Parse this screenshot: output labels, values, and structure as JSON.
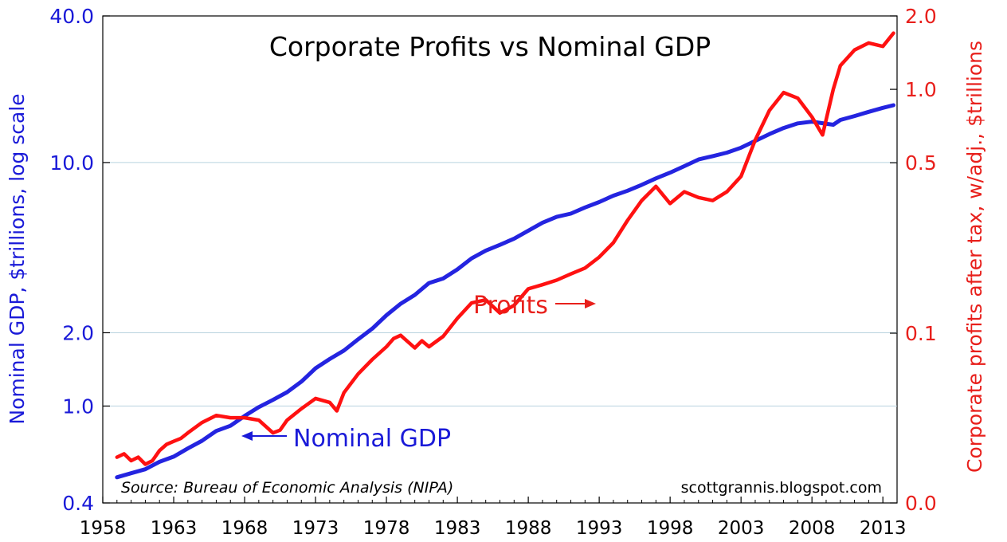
{
  "chart_data": {
    "type": "line",
    "title": "Corporate Profits vs Nominal GDP",
    "source": "Source: Bureau of Economic Analysis (NIPA)",
    "credit": "scottgrannis.blogspot.com",
    "x_ticks": [
      "1958",
      "1963",
      "1968",
      "1973",
      "1978",
      "1983",
      "1988",
      "1993",
      "1998",
      "2003",
      "2008",
      "2013"
    ],
    "xlim": [
      1958,
      2014
    ],
    "left_axis": {
      "label": "Nominal GDP, $trillions, log scale",
      "scale": "log",
      "range": [
        0.4,
        40
      ],
      "ticks": [
        "40.0",
        "10.0",
        "2.0",
        "1.0",
        "0.4"
      ],
      "color": "#1a1ad8"
    },
    "right_axis": {
      "label": "Corporate profits after tax, w/adj., $trillions",
      "scale": "log",
      "ticks": [
        "2.0",
        "1.0",
        "0.5",
        "0.1",
        "0.0"
      ],
      "color": "#e8201c"
    },
    "annotations": {
      "gdp": "Nominal GDP",
      "profits": "Profits"
    },
    "grid": "horizontal",
    "series": [
      {
        "name": "Nominal GDP",
        "axis": "left",
        "color": "#2424e0",
        "x": [
          1959,
          1960,
          1961,
          1962,
          1963,
          1964,
          1965,
          1966,
          1967,
          1968,
          1969,
          1970,
          1971,
          1972,
          1973,
          1974,
          1975,
          1976,
          1977,
          1978,
          1979,
          1980,
          1981,
          1982,
          1983,
          1984,
          1985,
          1986,
          1987,
          1988,
          1989,
          1990,
          1991,
          1992,
          1993,
          1994,
          1995,
          1996,
          1997,
          1998,
          1999,
          2000,
          2001,
          2002,
          2003,
          2004,
          2005,
          2006,
          2007,
          2008,
          2008.75,
          2009.5,
          2010,
          2011,
          2012,
          2013,
          2013.75
        ],
        "values": [
          0.51,
          0.53,
          0.55,
          0.59,
          0.62,
          0.67,
          0.72,
          0.79,
          0.83,
          0.91,
          0.99,
          1.06,
          1.14,
          1.26,
          1.43,
          1.56,
          1.69,
          1.88,
          2.08,
          2.36,
          2.63,
          2.86,
          3.2,
          3.34,
          3.64,
          4.04,
          4.35,
          4.59,
          4.87,
          5.25,
          5.66,
          5.98,
          6.17,
          6.54,
          6.88,
          7.31,
          7.66,
          8.1,
          8.61,
          9.09,
          9.66,
          10.29,
          10.62,
          10.98,
          11.51,
          12.27,
          13.09,
          13.86,
          14.48,
          14.72,
          14.5,
          14.3,
          14.96,
          15.52,
          16.16,
          16.77,
          17.2
        ]
      },
      {
        "name": "Profits",
        "axis": "right",
        "color": "#ff1111",
        "x": [
          1959,
          1959.5,
          1960,
          1960.5,
          1961,
          1961.5,
          1962,
          1962.5,
          1963,
          1963.5,
          1964,
          1965,
          1966,
          1967,
          1968,
          1969,
          1970,
          1970.5,
          1971,
          1972,
          1973,
          1974,
          1974.5,
          1975,
          1976,
          1977,
          1978,
          1978.5,
          1979,
          1980,
          1980.5,
          1981,
          1982,
          1983,
          1984,
          1985,
          1986,
          1987,
          1988,
          1989,
          1990,
          1991,
          1992,
          1993,
          1994,
          1995,
          1996,
          1997,
          1998,
          1999,
          2000,
          2001,
          2002,
          2003,
          2004,
          2005,
          2006,
          2007,
          2008,
          2008.75,
          2009.5,
          2010,
          2011,
          2012,
          2013,
          2013.75
        ],
        "values": [
          0.031,
          0.032,
          0.03,
          0.031,
          0.029,
          0.03,
          0.033,
          0.035,
          0.036,
          0.037,
          0.039,
          0.043,
          0.046,
          0.045,
          0.045,
          0.044,
          0.039,
          0.04,
          0.044,
          0.049,
          0.054,
          0.052,
          0.048,
          0.057,
          0.068,
          0.078,
          0.088,
          0.095,
          0.098,
          0.087,
          0.093,
          0.088,
          0.097,
          0.115,
          0.133,
          0.137,
          0.121,
          0.13,
          0.152,
          0.158,
          0.165,
          0.175,
          0.185,
          0.205,
          0.235,
          0.29,
          0.35,
          0.4,
          0.34,
          0.38,
          0.36,
          0.35,
          0.38,
          0.44,
          0.62,
          0.82,
          0.97,
          0.92,
          0.77,
          0.65,
          1.0,
          1.25,
          1.45,
          1.55,
          1.5,
          1.7
        ]
      }
    ]
  }
}
